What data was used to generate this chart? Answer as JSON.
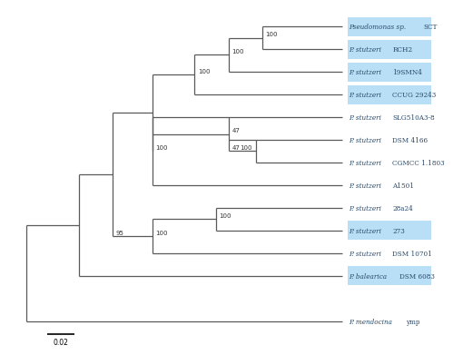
{
  "bg_color": "#ffffff",
  "tree_color": "#5a5a5a",
  "highlight_color": "#b8dff5",
  "text_color": "#2a4a6a",
  "taxa": [
    {
      "italic": "Pseudomonas sp. ",
      "roman": "SCT",
      "y": 13,
      "hl": true
    },
    {
      "italic": "P. stutzeri ",
      "roman": "RCH2",
      "y": 12,
      "hl": true
    },
    {
      "italic": "P. stutzeri ",
      "roman": "19SMN4",
      "y": 11,
      "hl": true
    },
    {
      "italic": "P. stutzeri ",
      "roman": "CCUG 29243",
      "y": 10,
      "hl": true
    },
    {
      "italic": "P. stutzeri ",
      "roman": "SLG510A3-8",
      "y": 9,
      "hl": false
    },
    {
      "italic": "P. stutzeri ",
      "roman": "DSM 4166",
      "y": 8,
      "hl": false
    },
    {
      "italic": "P. stutzeri ",
      "roman": "CGMCC 1.1803",
      "y": 7,
      "hl": false
    },
    {
      "italic": "P. stutzeri ",
      "roman": "A1501",
      "y": 6,
      "hl": false
    },
    {
      "italic": "P. stutzeri ",
      "roman": "28a24",
      "y": 5,
      "hl": false
    },
    {
      "italic": "P. stutzeri ",
      "roman": "273",
      "y": 4,
      "hl": true
    },
    {
      "italic": "P. stutzeri ",
      "roman": "DSM 10701",
      "y": 3,
      "hl": false
    },
    {
      "italic": "P. balearica ",
      "roman": "DSM 6083",
      "y": 2,
      "hl": true
    },
    {
      "italic": "P. mendocina ",
      "roman": "ymp",
      "y": 0,
      "hl": false
    }
  ],
  "scalebar_label": "0.02",
  "lw": 0.9
}
